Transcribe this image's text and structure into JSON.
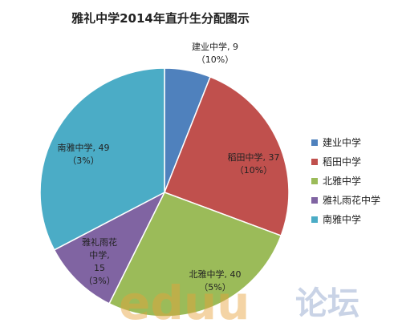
{
  "chart_data": {
    "type": "pie",
    "title": "雅礼中学2014年直升生分配图示",
    "categories": [
      "建业中学",
      "稻田中学",
      "北雅中学",
      "雅礼雨花中学",
      "南雅中学"
    ],
    "values": [
      9,
      37,
      40,
      15,
      49
    ],
    "colors": [
      "#4F81BD",
      "#C0504D",
      "#9BBB59",
      "#8064A2",
      "#4BACC6"
    ],
    "data_labels": [
      {
        "lines": [
          "建业中学, 9",
          "（10%）"
        ]
      },
      {
        "lines": [
          "稻田中学, 37",
          "（10%）"
        ]
      },
      {
        "lines": [
          "北雅中学, 40",
          "（5%）"
        ]
      },
      {
        "lines": [
          "雅礼雨花",
          "中学,",
          "15",
          "（3%）"
        ]
      },
      {
        "lines": [
          "南雅中学, 49",
          "（3%）"
        ]
      }
    ],
    "legend_position": "right"
  },
  "watermark": {
    "text_latin": "eduu",
    "text_cjk": "论坛"
  }
}
